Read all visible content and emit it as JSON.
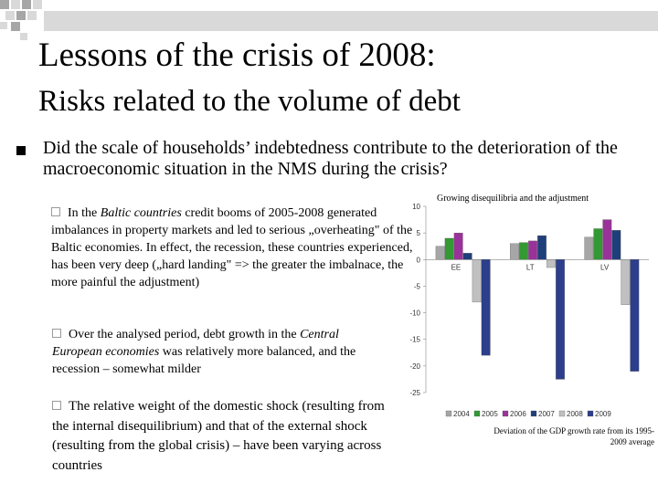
{
  "slide": {
    "title_line1": "Lessons of the crisis of 2008:",
    "title_line2": "Risks related to the volume of debt",
    "main_bullet": "Did the scale of households’ indebtedness contribute to the deterioration of the macroeconomic situation in the NMS during the crisis?",
    "p1": {
      "pre": "In the ",
      "em": "Baltic countries",
      "post": " credit booms of 2005-2008 generated imbalances in property markets and led to serious „overheating\" of the Baltic economies. In effect, the recession, these countries experienced, has been very deep („hard landing\" => the greater the imbalnace, the more painful the adjustment)"
    },
    "p2": {
      "pre": "Over the analysed period, debt growth in the ",
      "em": "Central European economies",
      "post": " was relatively more balanced, and the recession – somewhat milder"
    },
    "p3": "The relative weight of the domestic shock (resulting from the internal disequilibrium) and that of the external shock (resulting from the global crisis) – have been varying across countries",
    "chart_caption": "Deviation of the GDP growth rate from its 1995-2009 average"
  },
  "colors": {
    "deco_light": "#d9d9d9",
    "deco_dark": "#a6a6a6"
  },
  "chart_data": {
    "type": "bar",
    "title": "Growing disequilibria and the adjustment",
    "categories": [
      "EE",
      "LT",
      "LV"
    ],
    "series": [
      {
        "name": "2004",
        "color": "#a6a6a6",
        "values": [
          2.5,
          3.0,
          4.2
        ]
      },
      {
        "name": "2005",
        "color": "#339933",
        "values": [
          4.0,
          3.2,
          5.8
        ]
      },
      {
        "name": "2006",
        "color": "#993399",
        "values": [
          5.0,
          3.5,
          7.5
        ]
      },
      {
        "name": "2007",
        "color": "#1f3f7a",
        "values": [
          1.2,
          4.5,
          5.5
        ]
      },
      {
        "name": "2008",
        "color": "#c0c0c0",
        "values": [
          -8.0,
          -1.5,
          -8.5
        ]
      },
      {
        "name": "2009",
        "color": "#2c3e8c",
        "values": [
          -18.0,
          -22.5,
          -21.0
        ]
      }
    ],
    "ylim": [
      -25,
      10
    ],
    "yticks": [
      10,
      5,
      0,
      -5,
      -10,
      -15,
      -20,
      -25
    ],
    "legend": "bottom"
  }
}
